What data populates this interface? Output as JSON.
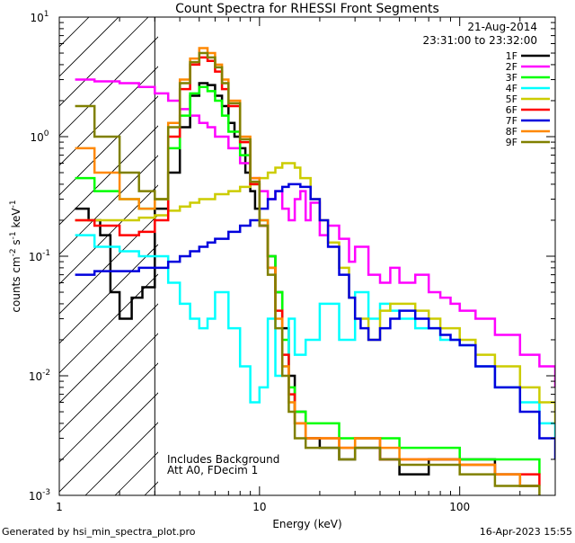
{
  "chart_data": {
    "type": "line",
    "title": "Count Spectra for RHESSI Front Segments",
    "xlabel": "Energy (keV)",
    "ylabel_parts": {
      "base": "counts cm",
      "e1": "-2",
      "mid1": " s",
      "e2": "-1",
      "mid2": " keV",
      "e3": "-1"
    },
    "x_scale": "log",
    "y_scale": "log",
    "xlim": [
      1,
      300
    ],
    "ylim": [
      0.001,
      10
    ],
    "x_ticks": [
      {
        "v": 1,
        "label": "1"
      },
      {
        "v": 10,
        "label": "10"
      },
      {
        "v": 100,
        "label": "100"
      }
    ],
    "y_ticks": [
      {
        "v": 0.001,
        "base": "10",
        "exp": "-3"
      },
      {
        "v": 0.01,
        "base": "10",
        "exp": "-2"
      },
      {
        "v": 0.1,
        "base": "10",
        "exp": "-1"
      },
      {
        "v": 1,
        "base": "10",
        "exp": "0"
      },
      {
        "v": 10,
        "base": "10",
        "exp": "1"
      }
    ],
    "excluded_region_below_keV": 3,
    "date": "21-Aug-2014",
    "time_range": "23:31:00 to 23:32:00",
    "annotations": [
      "Includes Background",
      "Att A0, FDecim 1"
    ],
    "legend_position": "top-right",
    "series": [
      {
        "name": "1F",
        "color": "#000000",
        "x": [
          1.2,
          1.4,
          1.6,
          1.8,
          2.0,
          2.3,
          2.6,
          3.0,
          3.5,
          4.0,
          4.5,
          5.0,
          5.5,
          6.0,
          6.5,
          7.0,
          7.5,
          8.0,
          8.5,
          9.0,
          9.5,
          10,
          11,
          12,
          13,
          14,
          15,
          17,
          20,
          25,
          30,
          40,
          50,
          70,
          100,
          150,
          200,
          250
        ],
        "y": [
          0.25,
          0.2,
          0.15,
          0.05,
          0.03,
          0.045,
          0.055,
          0.25,
          0.5,
          1.2,
          2.2,
          2.8,
          2.7,
          2.2,
          1.8,
          1.3,
          1.0,
          0.8,
          0.5,
          0.35,
          0.25,
          0.18,
          0.1,
          0.05,
          0.025,
          0.01,
          0.005,
          0.003,
          0.0025,
          0.002,
          0.0025,
          0.002,
          0.0015,
          0.002,
          0.002,
          0.0015,
          0.0012,
          0.0012
        ]
      },
      {
        "name": "2F",
        "color": "#ff00ff",
        "x": [
          1.2,
          1.5,
          2.0,
          2.5,
          3.0,
          3.5,
          4.0,
          4.5,
          5.0,
          5.5,
          6.0,
          7.0,
          8.0,
          9.0,
          10,
          11,
          12,
          13,
          14,
          15,
          16,
          17,
          18,
          20,
          22,
          25,
          28,
          30,
          35,
          40,
          45,
          50,
          60,
          70,
          80,
          90,
          100,
          120,
          150,
          200,
          250,
          300
        ],
        "y": [
          3.0,
          2.9,
          2.8,
          2.6,
          2.3,
          2.0,
          1.7,
          1.5,
          1.3,
          1.2,
          1.0,
          0.8,
          0.6,
          0.45,
          0.35,
          0.3,
          0.35,
          0.25,
          0.2,
          0.3,
          0.35,
          0.2,
          0.28,
          0.15,
          0.18,
          0.14,
          0.09,
          0.12,
          0.07,
          0.06,
          0.08,
          0.06,
          0.07,
          0.05,
          0.045,
          0.04,
          0.035,
          0.03,
          0.022,
          0.015,
          0.012,
          0.008
        ]
      },
      {
        "name": "3F",
        "color": "#00ff00",
        "x": [
          1.2,
          1.5,
          2.0,
          2.5,
          3.0,
          3.5,
          4.0,
          4.5,
          5.0,
          5.5,
          6.0,
          6.5,
          7.0,
          8.0,
          9.0,
          10,
          11,
          12,
          13,
          14,
          15,
          17,
          20,
          25,
          30,
          40,
          50,
          70,
          100,
          150,
          200,
          250
        ],
        "y": [
          0.45,
          0.35,
          0.3,
          0.25,
          0.3,
          0.8,
          1.5,
          2.3,
          2.6,
          2.4,
          2.0,
          1.5,
          1.1,
          0.7,
          0.4,
          0.2,
          0.1,
          0.05,
          0.02,
          0.008,
          0.005,
          0.004,
          0.004,
          0.003,
          0.003,
          0.003,
          0.0025,
          0.0025,
          0.002,
          0.002,
          0.002,
          0.0015
        ]
      },
      {
        "name": "4F",
        "color": "#00ffff",
        "x": [
          1.2,
          1.5,
          2.0,
          2.5,
          3.0,
          3.5,
          4.0,
          4.5,
          5.0,
          5.5,
          6.0,
          7.0,
          8.0,
          9.0,
          10,
          11,
          12,
          13,
          14,
          15,
          17,
          20,
          25,
          30,
          35,
          40,
          45,
          50,
          60,
          70,
          80,
          100,
          120,
          150,
          200,
          250,
          300
        ],
        "y": [
          0.15,
          0.12,
          0.11,
          0.1,
          0.1,
          0.06,
          0.04,
          0.03,
          0.025,
          0.03,
          0.05,
          0.025,
          0.012,
          0.006,
          0.008,
          0.03,
          0.01,
          0.012,
          0.03,
          0.015,
          0.02,
          0.04,
          0.02,
          0.05,
          0.03,
          0.04,
          0.035,
          0.03,
          0.025,
          0.025,
          0.02,
          0.018,
          0.012,
          0.008,
          0.006,
          0.004,
          0.003
        ]
      },
      {
        "name": "5F",
        "color": "#cccc00",
        "x": [
          1.2,
          1.5,
          2.0,
          2.5,
          3.0,
          3.5,
          4.0,
          4.5,
          5.0,
          6.0,
          7.0,
          8.0,
          9.0,
          10,
          11,
          12,
          13,
          14,
          15,
          16,
          18,
          20,
          22,
          25,
          28,
          30,
          35,
          40,
          45,
          50,
          60,
          70,
          80,
          100,
          120,
          150,
          200,
          250,
          300
        ],
        "y": [
          0.2,
          0.2,
          0.2,
          0.21,
          0.22,
          0.24,
          0.26,
          0.28,
          0.3,
          0.33,
          0.35,
          0.38,
          0.4,
          0.45,
          0.5,
          0.55,
          0.6,
          0.6,
          0.55,
          0.45,
          0.3,
          0.2,
          0.13,
          0.08,
          0.045,
          0.03,
          0.02,
          0.035,
          0.04,
          0.04,
          0.035,
          0.03,
          0.025,
          0.02,
          0.015,
          0.012,
          0.008,
          0.006,
          0.004
        ]
      },
      {
        "name": "6F",
        "color": "#ff0000",
        "x": [
          1.2,
          1.5,
          2.0,
          2.5,
          3.0,
          3.5,
          4.0,
          4.5,
          5.0,
          5.5,
          6.0,
          6.5,
          7.0,
          8.0,
          9.0,
          10,
          11,
          12,
          13,
          14,
          15,
          17,
          20,
          25,
          30,
          40,
          50,
          70,
          100,
          150,
          200,
          250
        ],
        "y": [
          0.2,
          0.18,
          0.15,
          0.16,
          0.2,
          1.0,
          2.5,
          4.0,
          4.6,
          4.3,
          3.5,
          2.5,
          1.8,
          0.9,
          0.4,
          0.18,
          0.08,
          0.035,
          0.015,
          0.007,
          0.004,
          0.003,
          0.003,
          0.0025,
          0.003,
          0.002,
          0.002,
          0.002,
          0.0018,
          0.0015,
          0.0015,
          0.0012
        ]
      },
      {
        "name": "7F",
        "color": "#0000dd",
        "x": [
          1.2,
          1.5,
          2.0,
          2.5,
          3.0,
          3.5,
          4.0,
          4.5,
          5.0,
          5.5,
          6.0,
          7.0,
          8.0,
          9.0,
          10,
          11,
          12,
          13,
          14,
          15,
          16,
          18,
          20,
          22,
          25,
          28,
          30,
          32,
          35,
          40,
          45,
          50,
          60,
          70,
          80,
          90,
          100,
          120,
          150,
          200,
          250,
          300
        ],
        "y": [
          0.07,
          0.075,
          0.075,
          0.08,
          0.08,
          0.09,
          0.1,
          0.11,
          0.12,
          0.13,
          0.14,
          0.16,
          0.18,
          0.2,
          0.25,
          0.3,
          0.35,
          0.38,
          0.4,
          0.4,
          0.38,
          0.3,
          0.2,
          0.12,
          0.07,
          0.045,
          0.03,
          0.025,
          0.02,
          0.025,
          0.03,
          0.035,
          0.03,
          0.025,
          0.022,
          0.02,
          0.018,
          0.012,
          0.008,
          0.005,
          0.003,
          0.002
        ]
      },
      {
        "name": "8F",
        "color": "#ff8800",
        "x": [
          1.2,
          1.5,
          2.0,
          2.5,
          3.0,
          3.5,
          4.0,
          4.5,
          5.0,
          5.5,
          6.0,
          6.5,
          7.0,
          8.0,
          9.0,
          10,
          11,
          12,
          13,
          14,
          15,
          17,
          20,
          25,
          30,
          40,
          50,
          70,
          100,
          150,
          200,
          250
        ],
        "y": [
          0.8,
          0.5,
          0.3,
          0.25,
          0.3,
          1.3,
          3.0,
          4.5,
          5.5,
          5.0,
          4.0,
          3.0,
          2.0,
          1.0,
          0.45,
          0.2,
          0.08,
          0.03,
          0.012,
          0.006,
          0.004,
          0.003,
          0.003,
          0.0025,
          0.003,
          0.0025,
          0.002,
          0.002,
          0.0018,
          0.0015,
          0.0012,
          0.0012
        ]
      },
      {
        "name": "9F",
        "color": "#808000",
        "x": [
          1.2,
          1.5,
          2.0,
          2.5,
          3.0,
          3.5,
          4.0,
          4.5,
          5.0,
          5.5,
          6.0,
          6.5,
          7.0,
          8.0,
          9.0,
          10,
          11,
          12,
          13,
          14,
          15,
          17,
          20,
          25,
          30,
          40,
          50,
          70,
          100,
          150,
          200,
          250
        ],
        "y": [
          1.8,
          1.0,
          0.5,
          0.35,
          0.3,
          1.2,
          2.8,
          4.2,
          5.0,
          4.6,
          3.8,
          2.8,
          1.9,
          0.95,
          0.42,
          0.18,
          0.07,
          0.025,
          0.01,
          0.005,
          0.003,
          0.0025,
          0.0025,
          0.002,
          0.0025,
          0.002,
          0.0018,
          0.0018,
          0.0015,
          0.0012,
          0.0012,
          0.001
        ]
      }
    ]
  },
  "footer": {
    "generator": "Generated by hsi_min_spectra_plot.pro",
    "timestamp": "16-Apr-2023 15:55"
  }
}
